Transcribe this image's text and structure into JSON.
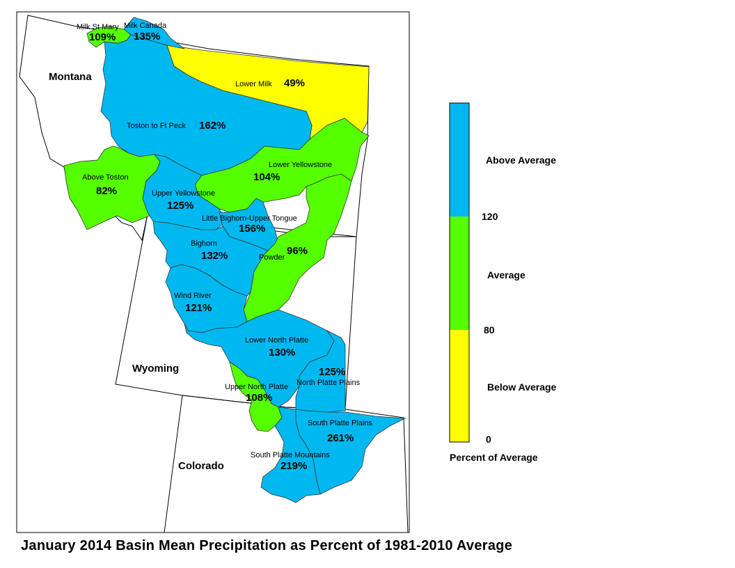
{
  "title": "January 2014 Basin Mean Precipitation as Percent of 1981-2010 Average",
  "states": {
    "montana": "Montana",
    "wyoming": "Wyoming",
    "colorado": "Colorado"
  },
  "colors": {
    "above": "#00b8f0",
    "average": "#55ff00",
    "below": "#ffff00"
  },
  "basins": [
    {
      "id": "milk-st-mary",
      "name": "Milk St Mary",
      "percent": "109%",
      "category": "average"
    },
    {
      "id": "milk-canada",
      "name": "Milk Canada",
      "percent": "135%",
      "category": "above"
    },
    {
      "id": "lower-milk",
      "name": "Lower Milk",
      "percent": "49%",
      "category": "below"
    },
    {
      "id": "toston-to-ft-peck",
      "name": "Toston to Ft Peck",
      "percent": "162%",
      "category": "above"
    },
    {
      "id": "above-toston",
      "name": "Above Toston",
      "percent": "82%",
      "category": "average"
    },
    {
      "id": "lower-yellowstone",
      "name": "Lower Yellowstone",
      "percent": "104%",
      "category": "average"
    },
    {
      "id": "upper-yellowstone",
      "name": "Upper Yellowstone",
      "percent": "125%",
      "category": "above"
    },
    {
      "id": "little-bighorn-upper-tongue",
      "name": "Little Bighorn-Upper Tongue",
      "percent": "156%",
      "category": "above"
    },
    {
      "id": "bighorn",
      "name": "Bighorn",
      "percent": "132%",
      "category": "above"
    },
    {
      "id": "powder",
      "name": "Powder",
      "percent": "96%",
      "category": "average"
    },
    {
      "id": "wind-river",
      "name": "Wind River",
      "percent": "121%",
      "category": "above"
    },
    {
      "id": "lower-north-platte",
      "name": "Lower North Platte",
      "percent": "130%",
      "category": "above"
    },
    {
      "id": "north-platte-plains",
      "name": "North Platte Plains",
      "percent": "125%",
      "category": "above"
    },
    {
      "id": "upper-north-platte",
      "name": "Upper North Platte",
      "percent": "108%",
      "category": "average"
    },
    {
      "id": "south-platte-plains",
      "name": "South Platte Plains",
      "percent": "261%",
      "category": "above"
    },
    {
      "id": "south-platte-mountains",
      "name": "South Platte Mountains",
      "percent": "219%",
      "category": "above"
    }
  ],
  "legend": {
    "title": "Percent of Average",
    "categories": [
      {
        "label": "Above Average",
        "category": "above"
      },
      {
        "label": "Average",
        "category": "average"
      },
      {
        "label": "Below Average",
        "category": "below"
      }
    ],
    "ticks": [
      "120",
      "80",
      "0"
    ]
  }
}
